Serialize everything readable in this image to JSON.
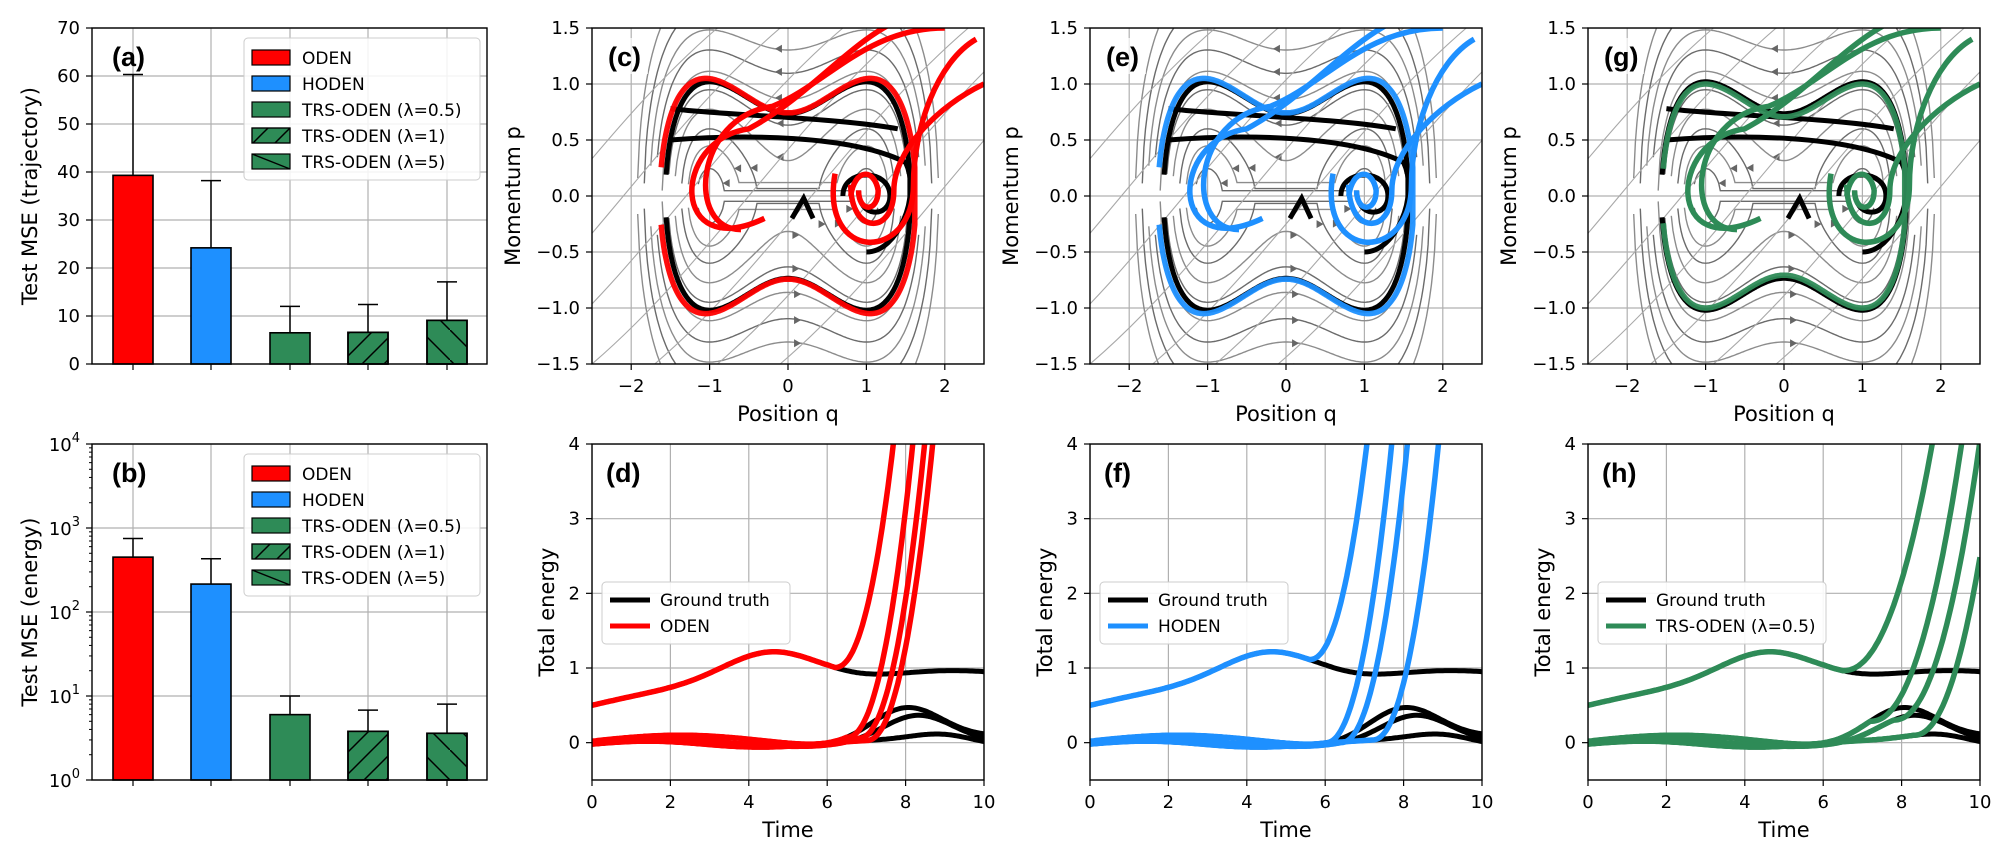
{
  "colors": {
    "oden": "#ff0000",
    "hoden": "#1e90ff",
    "trs": "#2e8b57",
    "truth": "#000000",
    "stream": "#7a7a7a"
  },
  "chart_data": [
    {
      "id": "a",
      "type": "bar",
      "label": "(a)",
      "ylabel": "Test MSE (trajectory)",
      "ylim": [
        0,
        70
      ],
      "yticks": [
        "0",
        "10",
        "20",
        "30",
        "40",
        "50",
        "60",
        "70"
      ],
      "grid": true,
      "legend_position": "top-right",
      "categories": [
        "ODEN",
        "HODEN",
        "TRS-ODEN (λ=0.5)",
        "TRS-ODEN (λ=1)",
        "TRS-ODEN (λ=5)"
      ],
      "values": [
        39.3,
        24.2,
        6.5,
        6.6,
        9.1
      ],
      "errors": [
        21.0,
        14.0,
        5.5,
        5.8,
        8.0
      ],
      "hatches": [
        "none",
        "none",
        "none",
        "fwd",
        "back"
      ]
    },
    {
      "id": "b",
      "type": "bar",
      "label": "(b)",
      "yscale": "log",
      "ylabel": "Test MSE (energy)",
      "ylim": [
        1,
        10000
      ],
      "grid": true,
      "ytick_base": "10",
      "ytick_exps": [
        "0",
        "1",
        "2",
        "3",
        "4"
      ],
      "legend_position": "top-right",
      "categories": [
        "ODEN",
        "HODEN",
        "TRS-ODEN (λ=0.5)",
        "TRS-ODEN (λ=1)",
        "TRS-ODEN (λ=5)"
      ],
      "values": [
        450,
        215,
        6.0,
        3.8,
        3.6
      ],
      "errors_upper": [
        750,
        430,
        10,
        6.8,
        8
      ]
    },
    {
      "id": "c",
      "type": "line",
      "label": "(c)",
      "model": "ODEN",
      "xlabel": "Position q",
      "ylabel": "Momentum p",
      "xlim": [
        -2.5,
        2.5
      ],
      "ylim": [
        -1.5,
        1.5
      ],
      "xticks": [
        "−2",
        "−1",
        "0",
        "1",
        "2"
      ],
      "yticks": [
        "−1.5",
        "−1.0",
        "−0.5",
        "0.0",
        "0.5",
        "1.0",
        "1.5"
      ]
    },
    {
      "id": "e",
      "type": "line",
      "label": "(e)",
      "model": "HODEN",
      "xlabel": "Position q",
      "ylabel": "Momentum p",
      "xlim": [
        -2.5,
        2.5
      ],
      "ylim": [
        -1.5,
        1.5
      ],
      "xticks": [
        "−2",
        "−1",
        "0",
        "1",
        "2"
      ],
      "yticks": [
        "−1.5",
        "−1.0",
        "−0.5",
        "0.0",
        "0.5",
        "1.0",
        "1.5"
      ]
    },
    {
      "id": "g",
      "type": "line",
      "label": "(g)",
      "model": "TRS-ODEN",
      "xlabel": "Position q",
      "ylabel": "Momentum p",
      "xlim": [
        -2.5,
        2.5
      ],
      "ylim": [
        -1.5,
        1.5
      ],
      "xticks": [
        "−2",
        "−1",
        "0",
        "1",
        "2"
      ],
      "yticks": [
        "−1.5",
        "−1.0",
        "−0.5",
        "0.0",
        "0.5",
        "1.0",
        "1.5"
      ]
    },
    {
      "id": "d",
      "type": "line",
      "label": "(d)",
      "xlabel": "Time",
      "ylabel": "Total energy",
      "xlim": [
        0,
        10
      ],
      "ylim": [
        -0.5,
        4
      ],
      "xticks": [
        "0",
        "2",
        "4",
        "6",
        "8",
        "10"
      ],
      "yticks": [
        "0",
        "1",
        "2",
        "3",
        "4"
      ],
      "legend": [
        "Ground truth",
        "ODEN"
      ],
      "blowup": [
        [
          6.2,
          0.9
        ],
        [
          6.5,
          0.85
        ],
        [
          6.8,
          0.8
        ],
        [
          7.0,
          0.75
        ]
      ]
    },
    {
      "id": "f",
      "type": "line",
      "label": "(f)",
      "xlabel": "Time",
      "ylabel": "Total energy",
      "xlim": [
        0,
        10
      ],
      "ylim": [
        -0.5,
        4
      ],
      "xticks": [
        "0",
        "2",
        "4",
        "6",
        "8",
        "10"
      ],
      "yticks": [
        "0",
        "1",
        "2",
        "3",
        "4"
      ],
      "legend": [
        "Ground truth",
        "HODEN"
      ],
      "blowup": [
        [
          5.6,
          0.55
        ],
        [
          6.0,
          0.55
        ],
        [
          6.4,
          0.5
        ],
        [
          7.2,
          0.5
        ]
      ]
    },
    {
      "id": "h",
      "type": "line",
      "label": "(h)",
      "xlabel": "Time",
      "ylabel": "Total energy",
      "xlim": [
        0,
        10
      ],
      "ylim": [
        -0.5,
        4
      ],
      "xticks": [
        "0",
        "2",
        "4",
        "6",
        "8",
        "10"
      ],
      "yticks": [
        "0",
        "1",
        "2",
        "3",
        "4"
      ],
      "legend": [
        "Ground truth",
        "TRS-ODEN (λ=0.5)"
      ],
      "blowup": [
        [
          6.5,
          0.35
        ],
        [
          7.2,
          0.3
        ],
        [
          7.8,
          0.3
        ],
        [
          8.3,
          0.3
        ]
      ]
    }
  ]
}
